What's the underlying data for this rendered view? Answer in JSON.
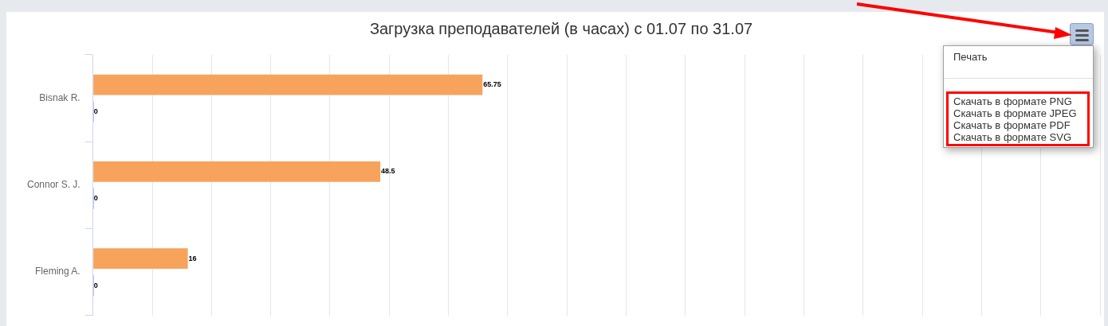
{
  "chart_data": {
    "type": "bar",
    "orientation": "horizontal",
    "title": "Загрузка преподавателей (в часах) с 01.07 по 31.07",
    "categories": [
      "Bisnak R.",
      "Connor S. J.",
      "Fleming A."
    ],
    "series": [
      {
        "color": "#f7a35c",
        "values": [
          65.75,
          48.5,
          16
        ]
      },
      {
        "color": "#8085e9",
        "values": [
          0,
          0,
          0
        ]
      }
    ],
    "xlim": [
      0,
      170
    ],
    "xticks": [
      {
        "value": 0,
        "label": null
      },
      {
        "value": 10,
        "label": null
      },
      {
        "value": 20,
        "label": null
      },
      {
        "value": 30,
        "label": null
      },
      {
        "value": 40,
        "label": null
      },
      {
        "value": 50,
        "label": null
      },
      {
        "value": 60,
        "label": null
      },
      {
        "value": 70,
        "label": null
      },
      {
        "value": 80,
        "label": null
      },
      {
        "value": 90,
        "label": null
      },
      {
        "value": 100,
        "label": null
      },
      {
        "value": 110,
        "label": null
      },
      {
        "value": 120,
        "label": null
      },
      {
        "value": 130,
        "label": null
      },
      {
        "value": 140,
        "label": null
      },
      {
        "value": 150,
        "label": null
      },
      {
        "value": 160,
        "label": null
      },
      {
        "value": 170,
        "label": null
      }
    ],
    "grid": "x",
    "tick_labels": "y",
    "data_labels": true,
    "legend": false,
    "annotations": [
      "Печать",
      "Скачать в формате PNG",
      "Скачать в формате JPEG",
      "Скачать в формате PDF",
      "Скачать в формате SVG"
    ]
  }
}
